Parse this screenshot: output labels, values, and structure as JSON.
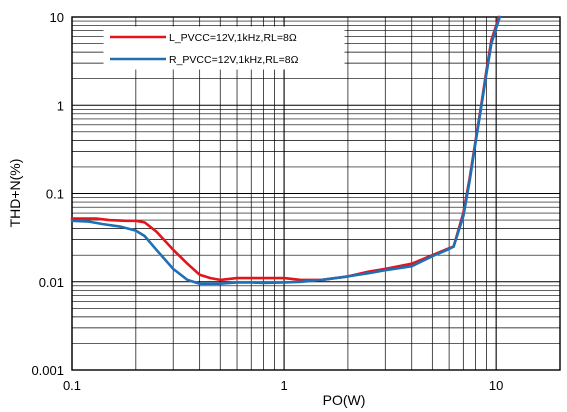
{
  "chart_data": {
    "type": "line",
    "xlabel": "PO(W)",
    "ylabel": "THD+N(%)",
    "xscale": "log",
    "yscale": "log",
    "xlim": [
      0.1,
      20
    ],
    "ylim": [
      0.001,
      10
    ],
    "x_ticks": [
      {
        "value": 0.1,
        "label": "0.1"
      },
      {
        "value": 1,
        "label": "1"
      },
      {
        "value": 10,
        "label": "10"
      }
    ],
    "y_ticks": [
      {
        "value": 10,
        "label": "10"
      },
      {
        "value": 1,
        "label": "1"
      },
      {
        "value": 0.1,
        "label": "0.1"
      },
      {
        "value": 0.01,
        "label": "0.01"
      },
      {
        "value": 0.001,
        "label": "0.001"
      }
    ],
    "grid": true,
    "legend_position": "top-left",
    "series": [
      {
        "name": "L_PVCC=12V,1kHz,RL=8Ω",
        "color": "#e3141b",
        "points": [
          [
            0.1,
            0.052
          ],
          [
            0.13,
            0.052
          ],
          [
            0.15,
            0.05
          ],
          [
            0.18,
            0.049
          ],
          [
            0.2,
            0.049
          ],
          [
            0.22,
            0.047
          ],
          [
            0.25,
            0.037
          ],
          [
            0.3,
            0.023
          ],
          [
            0.35,
            0.016
          ],
          [
            0.4,
            0.012
          ],
          [
            0.45,
            0.011
          ],
          [
            0.5,
            0.0105
          ],
          [
            0.6,
            0.011
          ],
          [
            0.7,
            0.011
          ],
          [
            0.8,
            0.011
          ],
          [
            1.0,
            0.011
          ],
          [
            1.2,
            0.0105
          ],
          [
            1.5,
            0.0105
          ],
          [
            2.0,
            0.0115
          ],
          [
            2.5,
            0.013
          ],
          [
            3.0,
            0.014
          ],
          [
            4.0,
            0.016
          ],
          [
            5.0,
            0.02
          ],
          [
            6.0,
            0.024
          ],
          [
            6.3,
            0.025
          ],
          [
            7.0,
            0.06
          ],
          [
            7.5,
            0.15
          ],
          [
            8.0,
            0.4
          ],
          [
            8.5,
            1.0
          ],
          [
            9.0,
            2.5
          ],
          [
            9.5,
            5.5
          ],
          [
            10.0,
            8.0
          ],
          [
            10.3,
            10.0
          ]
        ]
      },
      {
        "name": "R_PVCC=12V,1kHz,RL=8Ω",
        "color": "#1f6fb5",
        "points": [
          [
            0.1,
            0.049
          ],
          [
            0.12,
            0.048
          ],
          [
            0.14,
            0.045
          ],
          [
            0.17,
            0.042
          ],
          [
            0.2,
            0.038
          ],
          [
            0.22,
            0.033
          ],
          [
            0.25,
            0.023
          ],
          [
            0.3,
            0.014
          ],
          [
            0.35,
            0.0105
          ],
          [
            0.4,
            0.0095
          ],
          [
            0.5,
            0.0095
          ],
          [
            0.6,
            0.0098
          ],
          [
            0.7,
            0.0098
          ],
          [
            0.8,
            0.0097
          ],
          [
            1.0,
            0.0098
          ],
          [
            1.2,
            0.01
          ],
          [
            1.5,
            0.0105
          ],
          [
            2.0,
            0.0115
          ],
          [
            2.5,
            0.0125
          ],
          [
            3.0,
            0.0135
          ],
          [
            4.0,
            0.015
          ],
          [
            5.0,
            0.0195
          ],
          [
            6.0,
            0.0235
          ],
          [
            6.3,
            0.025
          ],
          [
            7.0,
            0.055
          ],
          [
            7.5,
            0.14
          ],
          [
            8.0,
            0.38
          ],
          [
            8.5,
            0.95
          ],
          [
            9.0,
            2.3
          ],
          [
            9.5,
            5.0
          ],
          [
            10.0,
            7.5
          ],
          [
            10.4,
            10.0
          ]
        ]
      }
    ]
  }
}
